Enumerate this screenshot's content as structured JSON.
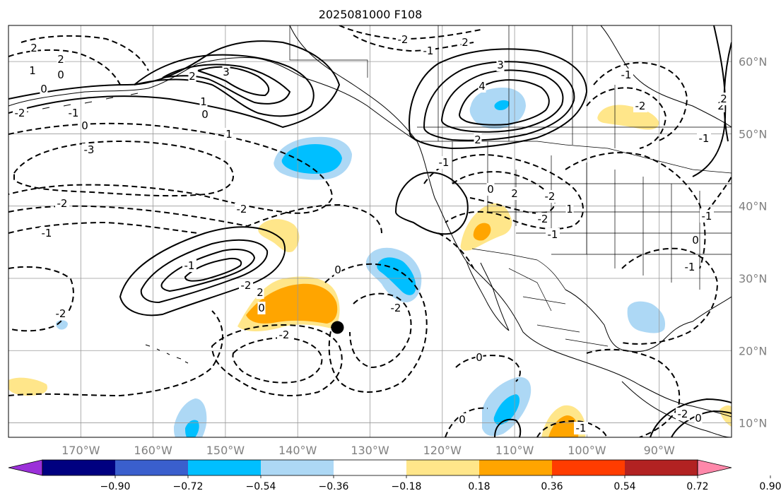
{
  "title": "2025081000 F108",
  "map": {
    "lon_labels": [
      "170°W",
      "160°W",
      "150°W",
      "140°W",
      "130°W",
      "120°W",
      "110°W",
      "100°W",
      "90°W"
    ],
    "lat_labels": [
      "60°N",
      "50°N",
      "40°N",
      "30°N",
      "20°N",
      "10°N"
    ],
    "lon_values": [
      -170,
      -160,
      -150,
      -140,
      -130,
      -120,
      -110,
      -100,
      -90
    ],
    "lat_values": [
      60,
      50,
      40,
      30,
      20,
      10
    ],
    "lon_range": [
      -180,
      -80
    ],
    "lat_range": [
      8,
      65
    ],
    "grid": true,
    "marker": {
      "lon": -134.5,
      "lat": 23.2,
      "color": "#000000"
    },
    "contour_labels": [
      "2",
      "2",
      "0",
      "1",
      "0",
      "-1",
      "0",
      "-2",
      "1",
      "-3",
      "0",
      "1",
      "2",
      "3",
      "-2",
      "-1",
      "2",
      "3",
      "4",
      "2",
      "-1",
      "-2",
      "-2",
      "-1",
      "0",
      "-2",
      "-2",
      "-1",
      "-2",
      "0",
      "2",
      "-2",
      "2",
      "0",
      "-2",
      "1",
      "-2",
      "-1",
      "0",
      "0",
      "-1",
      "-2",
      "-1",
      "-2",
      "-1",
      "2",
      "0",
      "-1",
      "-1",
      "0",
      "2"
    ]
  },
  "colorbar": {
    "ticks": [
      "−0.90",
      "−0.72",
      "−0.54",
      "−0.36",
      "−0.18",
      "0.18",
      "0.36",
      "0.54",
      "0.72",
      "0.90"
    ],
    "colors": [
      "#9b30d9",
      "#000080",
      "#3a5fcd",
      "#00bfff",
      "#add8f5",
      "#ffffff",
      "#ffe68a",
      "#ffa500",
      "#ff3c00",
      "#b22222",
      "#ff88aa"
    ]
  }
}
